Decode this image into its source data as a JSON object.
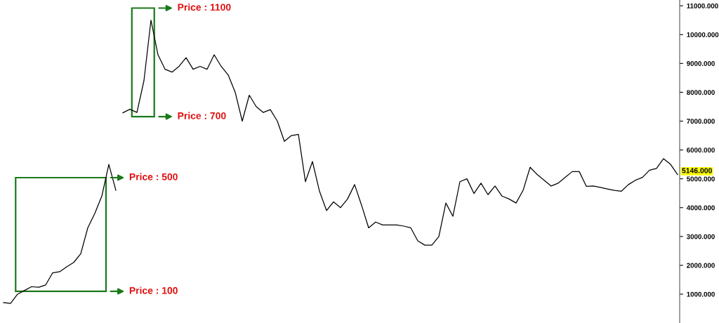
{
  "chart_data": {
    "type": "line",
    "categories": [
      null,
      null,
      null,
      null,
      null,
      null,
      null,
      null,
      null,
      null,
      null,
      null,
      null,
      null,
      null,
      null,
      null,
      null,
      null,
      null,
      null,
      null,
      null,
      null,
      null,
      null,
      null,
      null,
      null,
      null,
      null,
      null,
      null,
      null,
      null,
      null,
      null,
      null,
      null,
      null,
      null,
      null,
      null,
      null,
      null,
      null,
      null,
      null,
      null,
      null,
      null,
      null,
      null,
      null,
      null,
      null,
      null,
      null,
      null,
      null,
      null,
      null,
      null,
      null,
      null,
      null,
      null,
      null,
      null,
      null,
      null,
      null,
      null,
      null,
      null,
      null,
      null,
      null,
      null,
      null,
      null,
      null,
      null,
      null,
      null,
      null,
      null,
      null,
      null,
      null,
      null,
      null,
      null,
      null,
      null,
      null,
      null
    ],
    "series": [
      {
        "color": "#000000",
        "values": [
          710,
          680,
          1000,
          1130,
          1260,
          1240,
          1320,
          1740,
          1780,
          1950,
          2100,
          2400,
          3300,
          3800,
          4400,
          5500,
          4600,
          null,
          null,
          null,
          null,
          null,
          null,
          null,
          null,
          null,
          null,
          null,
          null,
          null,
          null,
          null,
          null,
          null,
          null,
          null,
          null,
          null,
          null,
          null,
          null,
          null,
          null,
          null,
          null,
          null,
          null,
          null,
          null,
          null,
          null,
          null,
          null,
          null,
          null,
          null,
          null,
          null,
          null,
          null,
          null,
          null,
          null,
          null,
          null,
          null,
          null,
          null,
          null,
          null,
          null,
          null,
          null,
          null,
          null,
          null,
          null,
          null,
          null,
          null,
          null,
          null,
          null,
          null,
          null,
          null,
          null,
          null,
          null,
          null,
          null,
          null,
          null,
          null,
          null,
          null,
          null
        ]
      },
      {
        "color": "#000000",
        "values": [
          null,
          null,
          null,
          null,
          null,
          null,
          null,
          null,
          null,
          null,
          null,
          null,
          null,
          null,
          null,
          null,
          null,
          7290,
          7410,
          7300,
          8400,
          10500,
          9300,
          8800,
          8700,
          8900,
          9200,
          8800,
          8900,
          8800,
          9300,
          8900,
          8600,
          8000,
          7000,
          7900,
          7500,
          7300,
          7400,
          7000,
          6300,
          6500,
          6540,
          4900,
          5600,
          4570,
          3900,
          4200,
          4000,
          4300,
          4800,
          4080,
          3300,
          3500,
          3400,
          3400,
          3400,
          3360,
          3300,
          2850,
          2700,
          2700,
          3000,
          4160,
          3700,
          4900,
          5000,
          4490,
          4850,
          4450,
          4750,
          4400,
          4300,
          4160,
          4600,
          5400,
          5150,
          4950,
          4750,
          4850,
          5050,
          5250,
          5250,
          4740,
          4750,
          4700,
          4650,
          4600,
          4570,
          4800,
          4950,
          5050,
          5300,
          5360,
          5700,
          5500,
          5146
        ]
      }
    ],
    "ylim": [
      0,
      11200
    ],
    "yticks": [
      {
        "value": 1000,
        "label": "1000.000"
      },
      {
        "value": 2000,
        "label": "2000.000"
      },
      {
        "value": 3000,
        "label": "3000.000"
      },
      {
        "value": 4000,
        "label": "4000.000"
      },
      {
        "value": 5000,
        "label": "5000.000"
      },
      {
        "value": 6000,
        "label": "6000.000"
      },
      {
        "value": 7000,
        "label": "7000.000"
      },
      {
        "value": 8000,
        "label": "8000.000"
      },
      {
        "value": 9000,
        "label": "9000.000"
      },
      {
        "value": 10000,
        "label": "10000.000"
      },
      {
        "value": 11000,
        "label": "11000.000"
      }
    ],
    "tick_labels": "y",
    "annotations": [
      "Price : 1100",
      "Price : 700",
      "Price : 500",
      "Price : 100",
      "5146.000"
    ]
  }
}
